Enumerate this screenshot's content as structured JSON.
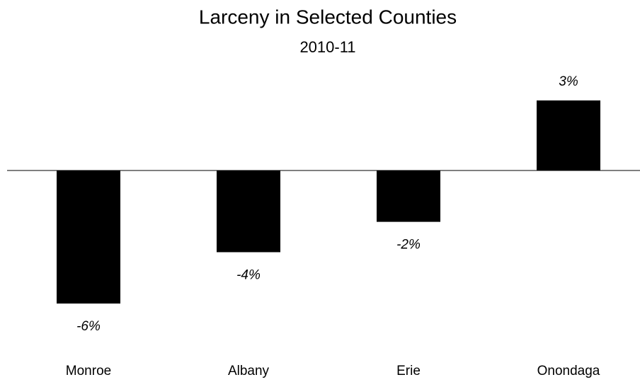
{
  "chart_data": {
    "type": "bar",
    "title": "Larceny in Selected Counties",
    "subtitle": "2010-11",
    "categories": [
      "Monroe",
      "Albany",
      "Erie",
      "Onondaga"
    ],
    "values": [
      -5.7,
      -3.5,
      -2.2,
      3.0
    ],
    "value_labels": [
      "-6%",
      "-4%",
      "-2%",
      "3%"
    ],
    "color": "#000000",
    "ylim": [
      -7,
      4
    ],
    "grid": false
  }
}
